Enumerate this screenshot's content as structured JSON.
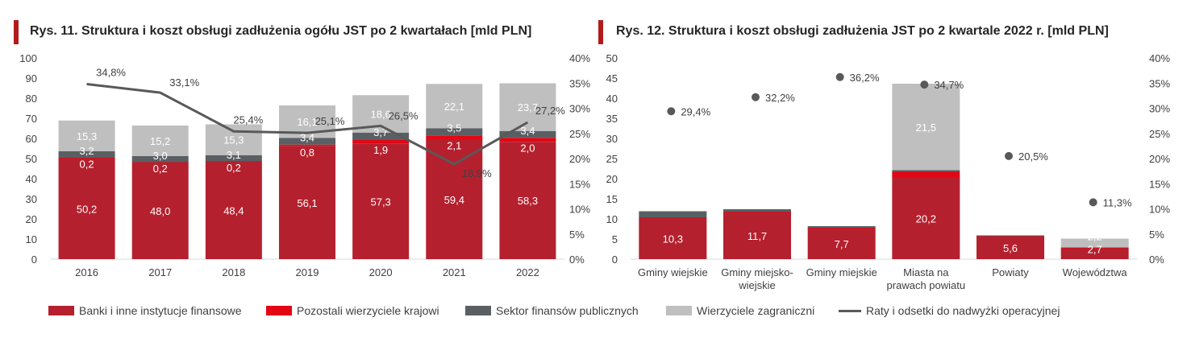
{
  "colors": {
    "banks": "#b5202e",
    "other_domestic": "#e30613",
    "public_sector": "#5a5f63",
    "foreign": "#bfbfbf",
    "ratio_line": "#595959",
    "title_accent": "#b31b1b"
  },
  "legend": [
    {
      "label": "Banki i inne instytucje finansowe",
      "color": "#b5202e",
      "kind": "box"
    },
    {
      "label": "Pozostali wierzyciele krajowi",
      "color": "#e30613",
      "kind": "box"
    },
    {
      "label": "Sektor finansów publicznych",
      "color": "#5a5f63",
      "kind": "box"
    },
    {
      "label": "Wierzyciele zagraniczni",
      "color": "#bfbfbf",
      "kind": "box"
    },
    {
      "label": "Raty i odsetki do nadwyżki operacyjnej",
      "color": "#595959",
      "kind": "line"
    }
  ],
  "chart_data": [
    {
      "type": "bar",
      "stacked": true,
      "title": "Rys. 11. Struktura i koszt obsługi zadłużenia ogółu JST po 2 kwartałach [mld PLN]",
      "categories": [
        "2016",
        "2017",
        "2018",
        "2019",
        "2020",
        "2021",
        "2022"
      ],
      "ylim": [
        0,
        100
      ],
      "yticks": [
        "0",
        "10",
        "20",
        "30",
        "40",
        "50",
        "60",
        "70",
        "80",
        "90",
        "100"
      ],
      "y2lim": [
        0,
        40
      ],
      "y2ticks": [
        "0%",
        "5%",
        "10%",
        "15%",
        "20%",
        "25%",
        "30%",
        "35%",
        "40%"
      ],
      "grid": false,
      "series": [
        {
          "name": "Banki i inne instytucje finansowe",
          "values": [
            50.2,
            48.0,
            48.4,
            56.1,
            57.3,
            59.4,
            58.3
          ],
          "labels": [
            "50,2",
            "48,0",
            "48,4",
            "56,1",
            "57,3",
            "59,4",
            "58,3"
          ]
        },
        {
          "name": "Pozostali wierzyciele krajowi",
          "values": [
            0.2,
            0.2,
            0.2,
            0.8,
            1.9,
            2.1,
            2.0
          ],
          "labels": [
            "0,2",
            "0,2",
            "0,2",
            "0,8",
            "1,9",
            "2,1",
            "2,0"
          ]
        },
        {
          "name": "Sektor finansów publicznych",
          "values": [
            3.2,
            3.0,
            3.1,
            3.4,
            3.7,
            3.5,
            3.4
          ],
          "labels": [
            "3,2",
            "3,0",
            "3,1",
            "3,4",
            "3,7",
            "3,5",
            "3,4"
          ]
        },
        {
          "name": "Wierzyciele zagraniczni",
          "values": [
            15.3,
            15.2,
            15.3,
            16.1,
            18.6,
            22.1,
            23.7
          ],
          "labels": [
            "15,3",
            "15,2",
            "15,3",
            "16,1",
            "18,6",
            "22,1",
            "23,7"
          ]
        }
      ],
      "line": {
        "name": "Raty i odsetki do nadwyżki operacyjnej",
        "axis": "right",
        "values": [
          34.8,
          33.1,
          25.4,
          25.1,
          26.5,
          18.9,
          27.2
        ],
        "labels": [
          "34,8%",
          "33,1%",
          "25,4%",
          "25,1%",
          "26,5%",
          "18,9%",
          "27,2%"
        ]
      }
    },
    {
      "type": "bar",
      "stacked": true,
      "title": "Rys. 12. Struktura i koszt obsługi zadłużenia JST po 2 kwartale 2022 r. [mld PLN]",
      "categories": [
        [
          "Gminy wiejskie"
        ],
        [
          "Gminy miejsko-",
          "wiejskie"
        ],
        [
          "Gminy miejskie"
        ],
        [
          "Miasta na",
          "prawach powiatu"
        ],
        [
          "Powiaty"
        ],
        [
          "Województwa"
        ]
      ],
      "ylim": [
        0,
        50
      ],
      "yticks": [
        "0",
        "5",
        "10",
        "15",
        "20",
        "25",
        "30",
        "35",
        "40",
        "45",
        "50"
      ],
      "y2lim": [
        0,
        40
      ],
      "y2ticks": [
        "0%",
        "5%",
        "10%",
        "15%",
        "20%",
        "25%",
        "30%",
        "35%",
        "40%"
      ],
      "grid": false,
      "series": [
        {
          "name": "Banki i inne instytucje finansowe",
          "values": [
            10.3,
            11.7,
            7.7,
            20.2,
            5.6,
            2.7
          ],
          "labels": [
            "10,3",
            "11,7",
            "7,7",
            "20,2",
            "5,6",
            "2,7"
          ]
        },
        {
          "name": "Pozostali wierzyciele krajowi",
          "values": [
            0.1,
            0.1,
            0.1,
            1.5,
            0.1,
            0.1
          ],
          "labels": [
            "",
            "",
            "",
            "",
            "",
            ""
          ]
        },
        {
          "name": "Sektor finansów publicznych",
          "values": [
            1.5,
            0.6,
            0.4,
            0.4,
            0.2,
            0.1
          ],
          "labels": [
            "",
            "",
            "",
            "",
            "",
            ""
          ]
        },
        {
          "name": "Wierzyciele zagraniczni",
          "values": [
            0.0,
            0.0,
            0.0,
            21.5,
            0.0,
            2.2
          ],
          "labels": [
            "",
            "",
            "",
            "21,5",
            "",
            "2,2"
          ]
        }
      ],
      "points": {
        "name": "Raty i odsetki do nadwyżki operacyjnej",
        "axis": "right",
        "values": [
          29.4,
          32.2,
          36.2,
          34.7,
          20.5,
          11.3
        ],
        "labels": [
          "29,4%",
          "32,2%",
          "36,2%",
          "34,7%",
          "20,5%",
          "11,3%"
        ]
      }
    }
  ]
}
